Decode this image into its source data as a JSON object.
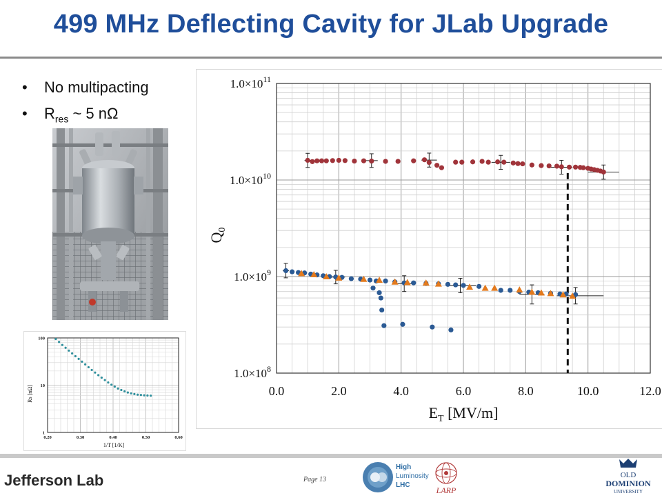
{
  "slide": {
    "title": "499 MHz Deflecting Cavity for JLab Upgrade",
    "bullets": [
      {
        "text": "No multipacting"
      },
      {
        "main": "R",
        "sub": "res",
        "rest": " ~ 5 nΩ"
      }
    ],
    "page_label": "Page 13",
    "footer": {
      "jlab": "Jefferson Lab",
      "hilumi": [
        "High",
        "Luminosity",
        "LHC"
      ],
      "larp": "LARP",
      "odu": [
        "OLD",
        "DOMINION",
        "UNIVERSITY"
      ]
    }
  },
  "colors": {
    "title": "#1f4e9a",
    "red_series": "#a0343a",
    "blue_series": "#2b5a94",
    "orange_series": "#e37a1d",
    "inset_series": "#2f8f9c"
  },
  "chart_data": [
    {
      "type": "scatter",
      "title": "",
      "xlabel_main": "E",
      "xlabel_sub": "T",
      "xlabel_rest": " [MV/m]",
      "ylabel_main": "Q",
      "ylabel_sub": "0",
      "xlim": [
        0,
        12
      ],
      "ylim": [
        100000000,
        100000000000
      ],
      "yscale": "log",
      "grid": true,
      "x_ticks": [
        "0.0",
        "2.0",
        "4.0",
        "6.0",
        "8.0",
        "10.0",
        "12.0"
      ],
      "y_ticks": [
        {
          "mant": "1.0×10",
          "exp": "8",
          "value": 100000000
        },
        {
          "mant": "1.0×10",
          "exp": "9",
          "value": 1000000000
        },
        {
          "mant": "1.0×10",
          "exp": "10",
          "value": 10000000000
        },
        {
          "mant": "1.0×10",
          "exp": "11",
          "value": 100000000000
        }
      ],
      "vline_x": 9.35,
      "series": [
        {
          "color_key": "red_series",
          "marker": "circle",
          "x": [
            1.0,
            1.15,
            1.3,
            1.45,
            1.6,
            1.8,
            2.0,
            2.2,
            2.5,
            2.8,
            3.05,
            3.5,
            3.9,
            4.4,
            4.75,
            4.9,
            5.15,
            5.3,
            5.75,
            5.95,
            6.3,
            6.6,
            6.8,
            7.1,
            7.3,
            7.6,
            7.75,
            7.9,
            8.2,
            8.5,
            8.75,
            9.0,
            9.15,
            9.4,
            9.6,
            9.75,
            9.85,
            10.0,
            10.1,
            10.2,
            10.3,
            10.4,
            10.5
          ],
          "y": [
            16000000000,
            15500000000,
            15800000000,
            15800000000,
            15800000000,
            15900000000,
            16000000000,
            15900000000,
            15700000000,
            15800000000,
            15700000000,
            15600000000,
            15600000000,
            15800000000,
            16200000000,
            15200000000,
            14200000000,
            13400000000,
            15300000000,
            15300000000,
            15400000000,
            15600000000,
            15300000000,
            15400000000,
            15300000000,
            15000000000,
            14800000000,
            14700000000,
            14300000000,
            14100000000,
            14000000000,
            13900000000,
            13700000000,
            13600000000,
            13600000000,
            13500000000,
            13400000000,
            13200000000,
            13000000000,
            12800000000,
            12600000000,
            12400000000,
            12100000000
          ],
          "err_x": [
            1.0,
            3.05,
            4.9,
            7.2,
            9.15,
            10.5
          ],
          "err_y_lo": [
            13500000000,
            13500000000,
            13600000000,
            12900000000,
            11500000000,
            10200000000
          ],
          "err_y_hi": [
            18900000000,
            18700000000,
            19000000000,
            18000000000,
            16000000000,
            14300000000
          ],
          "err_x_lo": [
            0.9,
            2.85,
            4.65,
            6.9,
            8.8,
            10.0
          ],
          "err_x_hi": [
            1.1,
            3.25,
            5.15,
            7.5,
            9.5,
            11.0
          ]
        },
        {
          "color_key": "blue_series",
          "marker": "circle",
          "x": [
            0.3,
            0.5,
            0.7,
            0.9,
            1.1,
            1.3,
            1.5,
            1.7,
            1.9,
            2.1,
            2.4,
            2.7,
            3.0,
            3.2,
            3.5,
            3.8,
            4.1,
            4.4,
            4.8,
            5.2,
            5.5,
            5.75,
            6.0,
            6.5,
            7.2,
            7.5,
            7.8,
            8.1,
            8.4,
            8.8,
            9.1,
            9.3,
            9.6,
            3.1,
            3.3,
            3.35,
            3.38,
            3.45,
            4.05,
            5.0,
            5.6
          ],
          "y": [
            1150000000,
            1120000000,
            1100000000,
            1090000000,
            1060000000,
            1040000000,
            1020000000,
            1000000000,
            990000000,
            980000000,
            950000000,
            940000000,
            920000000,
            900000000,
            900000000,
            880000000,
            860000000,
            860000000,
            850000000,
            840000000,
            830000000,
            820000000,
            810000000,
            790000000,
            720000000,
            720000000,
            700000000,
            690000000,
            680000000,
            670000000,
            660000000,
            660000000,
            650000000,
            760000000,
            680000000,
            600000000,
            450000000,
            310000000,
            320000000,
            300000000,
            280000000
          ],
          "err_x": [
            0.3,
            1.9,
            4.1,
            5.9
          ],
          "err_y_lo": [
            970000000,
            840000000,
            700000000,
            680000000
          ],
          "err_y_hi": [
            1370000000,
            1160000000,
            1020000000,
            960000000
          ],
          "err_x_lo": [
            0.2,
            1.6,
            3.8,
            5.5
          ],
          "err_x_hi": [
            0.4,
            2.2,
            4.4,
            6.4
          ]
        },
        {
          "color_key": "orange_series",
          "marker": "triangle",
          "x": [
            0.8,
            1.2,
            1.6,
            2.0,
            2.8,
            3.3,
            3.8,
            4.2,
            4.8,
            5.2,
            6.2,
            6.7,
            7.0,
            7.8,
            8.2,
            8.5,
            8.8,
            9.2,
            9.5
          ],
          "y": [
            1080000000,
            1050000000,
            1000000000,
            970000000,
            940000000,
            920000000,
            880000000,
            870000000,
            860000000,
            840000000,
            780000000,
            760000000,
            760000000,
            730000000,
            690000000,
            680000000,
            670000000,
            650000000,
            630000000
          ],
          "err_x": [
            8.2,
            9.6
          ],
          "err_y_lo": [
            520000000,
            520000000
          ],
          "err_y_hi": [
            820000000,
            770000000
          ],
          "err_x_lo": [
            7.8,
            9.0
          ],
          "err_x_hi": [
            8.6,
            10.5
          ]
        }
      ]
    },
    {
      "type": "scatter",
      "title": "",
      "xlabel": "1/T [1/K]",
      "ylabel": "Rs [nΩ]",
      "xlim": [
        0.2,
        0.6
      ],
      "ylim": [
        1,
        100
      ],
      "yscale": "log",
      "grid": true,
      "x_ticks": [
        "0.20",
        "0.30",
        "0.40",
        "0.50",
        "0.60"
      ],
      "y_ticks": [
        {
          "label": "100",
          "value": 100
        },
        {
          "label": "10",
          "value": 10
        },
        {
          "label": "1",
          "value": 1
        }
      ],
      "series": [
        {
          "color_key": "inset_series",
          "marker": "circle",
          "x": [
            0.225,
            0.235,
            0.245,
            0.255,
            0.265,
            0.275,
            0.285,
            0.295,
            0.305,
            0.315,
            0.325,
            0.335,
            0.345,
            0.355,
            0.365,
            0.375,
            0.385,
            0.395,
            0.405,
            0.415,
            0.425,
            0.435,
            0.445,
            0.455,
            0.465,
            0.475,
            0.485,
            0.495,
            0.505,
            0.515
          ],
          "y": [
            95,
            82,
            71,
            62,
            54,
            47,
            41,
            36,
            31.5,
            27.5,
            24,
            21,
            18.5,
            16.3,
            14.4,
            12.8,
            11.4,
            10.2,
            9.3,
            8.5,
            7.9,
            7.4,
            7.0,
            6.7,
            6.5,
            6.3,
            6.2,
            6.1,
            6.05,
            6.0
          ]
        }
      ]
    }
  ]
}
